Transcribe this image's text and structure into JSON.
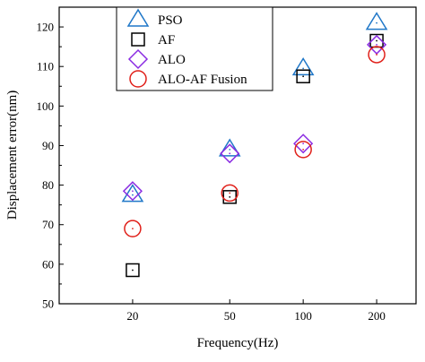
{
  "chart_data": {
    "type": "scatter",
    "title": "",
    "xlabel": "Frequency(Hz)",
    "ylabel": "Displacement error(nm)",
    "x_scale": "log",
    "categories": [
      "20",
      "50",
      "100",
      "200"
    ],
    "x": [
      20,
      50,
      100,
      200
    ],
    "ylim": [
      50,
      125
    ],
    "yticks": [
      50,
      60,
      70,
      80,
      90,
      100,
      110,
      120
    ],
    "legend_position": "top-left",
    "series": [
      {
        "name": "PSO",
        "marker": "triangle",
        "color": "#1f77c8",
        "values": [
          77.5,
          89,
          109.5,
          121
        ]
      },
      {
        "name": "AF",
        "marker": "square",
        "color": "#000000",
        "values": [
          58.5,
          77,
          107.5,
          116.5
        ]
      },
      {
        "name": "ALO",
        "marker": "diamond",
        "color": "#8a2be2",
        "values": [
          78.5,
          88,
          90.5,
          115.5
        ]
      },
      {
        "name": "ALO-AF Fusion",
        "marker": "circle",
        "color": "#e0201a",
        "values": [
          69,
          78,
          89,
          113
        ]
      }
    ]
  }
}
